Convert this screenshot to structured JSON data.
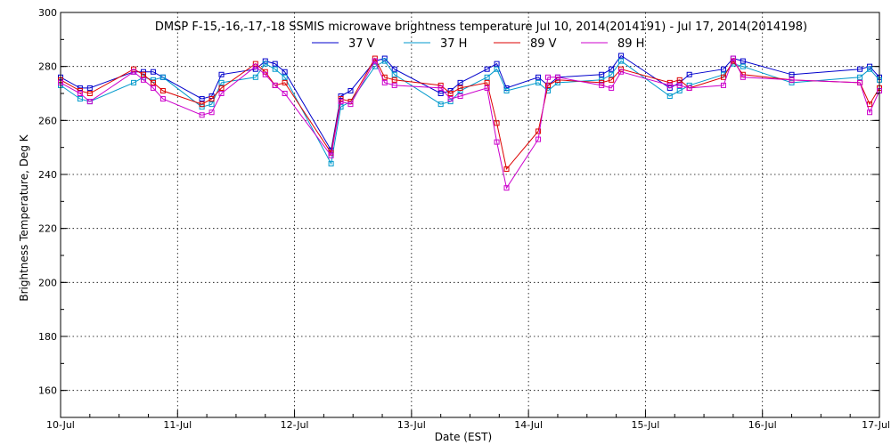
{
  "chart_data": {
    "type": "line",
    "title": "DMSP F-15,-16,-17,-18 SSMIS microwave brightness temperature Jul 10, 2014(2014191) - Jul 17, 2014(2014198)",
    "xlabel": "Date (EST)",
    "ylabel": "Brightness Temperature, Deg K",
    "ylim": [
      150,
      300
    ],
    "yticks": [
      160,
      180,
      200,
      220,
      240,
      260,
      280,
      300
    ],
    "xlim": [
      "2014-07-10",
      "2014-07-17"
    ],
    "x_tick_labels": [
      "10-Jul",
      "11-Jul",
      "12-Jul",
      "13-Jul",
      "14-Jul",
      "15-Jul",
      "16-Jul",
      "17-Jul"
    ],
    "grid": true,
    "legend_position": "top",
    "x": [
      "2014-07-10 00:00",
      "2014-07-10 04:00",
      "2014-07-10 06:00",
      "2014-07-10 15:00",
      "2014-07-10 17:00",
      "2014-07-10 19:00",
      "2014-07-10 21:00",
      "2014-07-11 05:00",
      "2014-07-11 07:00",
      "2014-07-11 09:00",
      "2014-07-11 16:00",
      "2014-07-11 18:00",
      "2014-07-11 20:00",
      "2014-07-11 22:00",
      "2014-07-12 07:30",
      "2014-07-12 09:30",
      "2014-07-12 11:30",
      "2014-07-12 16:30",
      "2014-07-12 18:30",
      "2014-07-12 20:30",
      "2014-07-13 06:00",
      "2014-07-13 08:00",
      "2014-07-13 10:00",
      "2014-07-13 15:30",
      "2014-07-13 17:30",
      "2014-07-13 19:30",
      "2014-07-14 02:00",
      "2014-07-14 04:00",
      "2014-07-14 06:00",
      "2014-07-14 15:00",
      "2014-07-14 17:00",
      "2014-07-14 19:00",
      "2014-07-15 05:00",
      "2014-07-15 07:00",
      "2014-07-15 09:00",
      "2014-07-15 16:00",
      "2014-07-15 18:00",
      "2014-07-15 20:00",
      "2014-07-16 06:00",
      "2014-07-16 20:00",
      "2014-07-16 22:00",
      "2014-07-17 00:00"
    ],
    "series": [
      {
        "name": "37 V",
        "color": "#0000cc",
        "values": [
          276,
          272,
          272,
          278,
          278,
          278,
          276,
          268,
          269,
          277,
          279,
          282,
          281,
          278,
          249,
          269,
          271,
          282,
          283,
          279,
          270,
          271,
          274,
          279,
          281,
          272,
          276,
          273,
          276,
          277,
          279,
          284,
          272,
          274,
          277,
          279,
          283,
          282,
          277,
          279,
          280,
          276
        ]
      },
      {
        "name": "37 H",
        "color": "#0099cc",
        "values": [
          273,
          268,
          267,
          274,
          276,
          275,
          276,
          265,
          266,
          274,
          276,
          281,
          279,
          276,
          244,
          265,
          267,
          280,
          282,
          277,
          266,
          267,
          271,
          276,
          279,
          271,
          274,
          271,
          274,
          275,
          277,
          282,
          269,
          271,
          273,
          277,
          281,
          280,
          274,
          276,
          279,
          275
        ]
      },
      {
        "name": "89 V",
        "color": "#dd0000",
        "values": [
          275,
          271,
          270,
          279,
          277,
          274,
          271,
          266,
          268,
          272,
          281,
          278,
          273,
          274,
          248,
          268,
          267,
          283,
          276,
          275,
          273,
          270,
          272,
          274,
          259,
          242,
          256,
          273,
          275,
          274,
          275,
          279,
          274,
          275,
          272,
          276,
          282,
          277,
          275,
          274,
          266,
          272
        ]
      },
      {
        "name": "89 H",
        "color": "#cc00cc",
        "values": [
          274,
          270,
          267,
          278,
          275,
          272,
          268,
          262,
          263,
          270,
          280,
          277,
          273,
          270,
          247,
          267,
          266,
          282,
          274,
          273,
          272,
          268,
          269,
          272,
          252,
          235,
          253,
          276,
          276,
          273,
          272,
          278,
          273,
          273,
          272,
          273,
          283,
          276,
          275,
          274,
          263,
          271
        ]
      }
    ]
  }
}
